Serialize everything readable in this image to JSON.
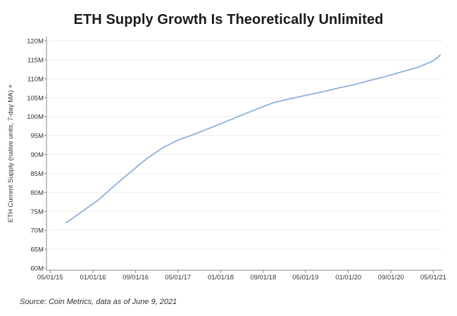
{
  "chart_data": {
    "type": "line",
    "title": "ETH Supply Growth Is Theoretically Unlimited",
    "ylabel": "ETH Current Supply (native units, 7-day MA) +",
    "xlabel": "",
    "source": "Source: Coin Metrics, data as of June 9, 2021",
    "x_tick_labels": [
      "05/01/15",
      "01/01/16",
      "09/01/16",
      "05/01/17",
      "01/01/18",
      "09/01/18",
      "05/01/19",
      "01/01/20",
      "09/01/20",
      "05/01/21"
    ],
    "y_tick_labels": [
      "60M",
      "65M",
      "70M",
      "75M",
      "80M",
      "85M",
      "90M",
      "95M",
      "100M",
      "105M",
      "110M",
      "115M",
      "120M"
    ],
    "ylim": [
      60000000,
      120000000
    ],
    "xlim": [
      "2015-04-10",
      "2021-06-25"
    ],
    "grid": true,
    "series": [
      {
        "color": "#8fb0d9",
        "x": [
          "2015-08-01",
          "2015-11-01",
          "2016-02-01",
          "2016-05-01",
          "2016-08-01",
          "2016-11-01",
          "2017-02-01",
          "2017-05-01",
          "2017-08-01",
          "2017-11-01",
          "2018-02-01",
          "2018-05-01",
          "2018-08-01",
          "2018-11-01",
          "2019-02-01",
          "2019-05-01",
          "2019-08-01",
          "2019-11-01",
          "2020-02-01",
          "2020-05-01",
          "2020-08-01",
          "2020-11-01",
          "2021-02-01",
          "2021-05-01",
          "2021-06-09"
        ],
        "values": [
          72000000,
          75000000,
          78000000,
          81700000,
          85300000,
          88800000,
          91700000,
          93800000,
          95300000,
          97000000,
          98700000,
          100400000,
          102100000,
          103700000,
          104700000,
          105600000,
          106500000,
          107500000,
          108400000,
          109500000,
          110600000,
          111800000,
          113000000,
          114700000,
          116200000
        ]
      }
    ]
  }
}
